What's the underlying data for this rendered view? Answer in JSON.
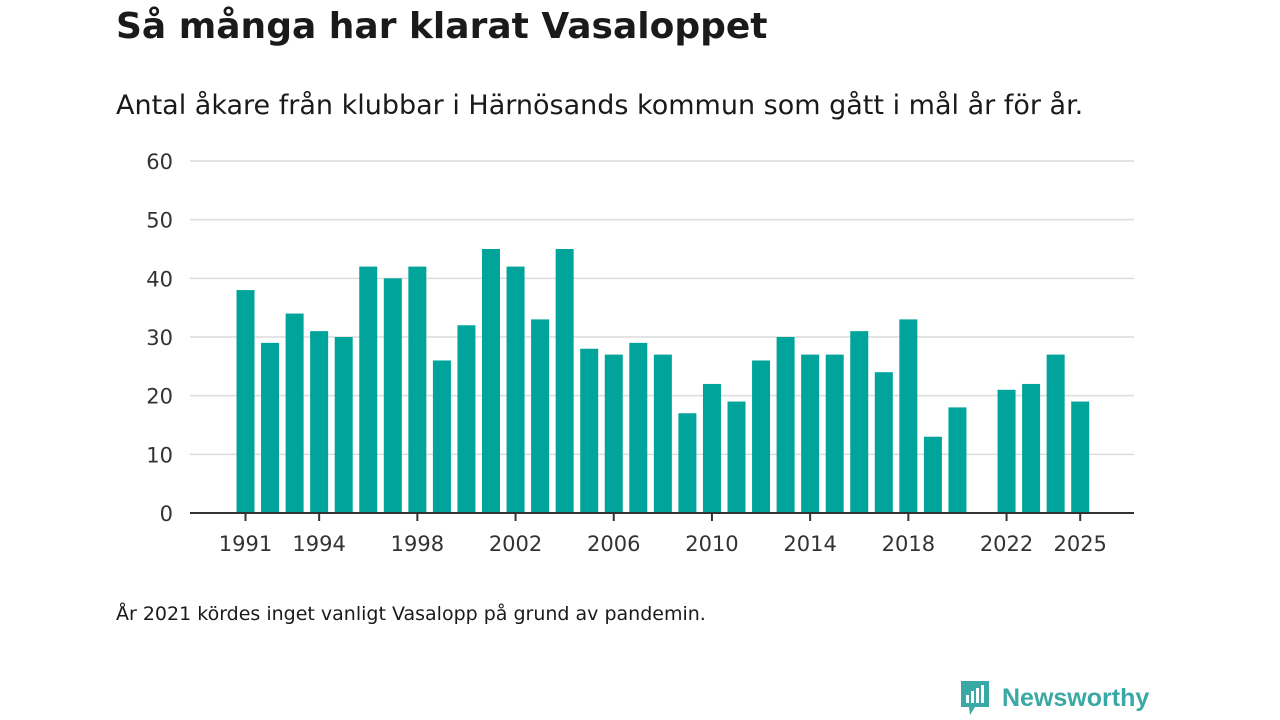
{
  "header": {
    "title": "Så många har klarat Vasaloppet",
    "subtitle": "Antal åkare från klubbar i Härnösands kommun som gått i mål år för år."
  },
  "footnote": "År 2021 kördes inget vanligt Vasalopp på grund av pandemin.",
  "brand": {
    "name": "Newsworthy",
    "icon": "newsworthy-logo-icon",
    "color": "#3aa8a4"
  },
  "chart_data": {
    "type": "bar",
    "color": "#00a49a",
    "categories": [
      1991,
      1992,
      1993,
      1994,
      1995,
      1996,
      1997,
      1998,
      1999,
      2000,
      2001,
      2002,
      2003,
      2004,
      2005,
      2006,
      2007,
      2008,
      2009,
      2010,
      2011,
      2012,
      2013,
      2014,
      2015,
      2016,
      2017,
      2018,
      2019,
      2020,
      2021,
      2022,
      2023,
      2024,
      2025
    ],
    "values": [
      38,
      29,
      34,
      31,
      30,
      42,
      40,
      42,
      26,
      32,
      45,
      42,
      33,
      45,
      28,
      27,
      29,
      27,
      17,
      22,
      19,
      26,
      30,
      27,
      27,
      31,
      24,
      33,
      13,
      18,
      null,
      21,
      22,
      27,
      19
    ],
    "x_tick_labels": [
      "1991",
      "1994",
      "1998",
      "2002",
      "2006",
      "2010",
      "2014",
      "2018",
      "2022",
      "2025"
    ],
    "y_ticks": [
      0,
      10,
      20,
      30,
      40,
      50,
      60
    ],
    "ylim": [
      0,
      60
    ],
    "grid": true,
    "xlabel": "",
    "ylabel": ""
  }
}
